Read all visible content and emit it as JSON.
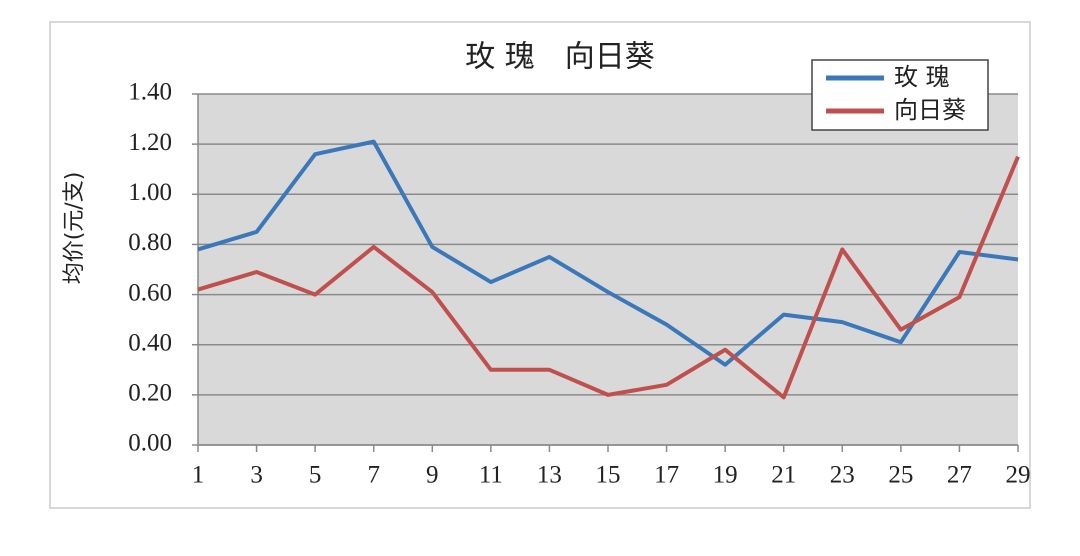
{
  "chart_data": {
    "type": "line",
    "title": "玫 瑰　向日葵",
    "y_label": "均价(元/支)",
    "x": [
      1,
      3,
      5,
      7,
      9,
      11,
      13,
      15,
      17,
      19,
      21,
      23,
      25,
      27,
      29
    ],
    "series": [
      {
        "name": "玫 瑰",
        "color": "#3b78b9",
        "values": [
          0.78,
          0.85,
          1.16,
          1.21,
          0.79,
          0.65,
          0.75,
          0.61,
          0.48,
          0.32,
          0.52,
          0.49,
          0.41,
          0.77,
          0.74
        ]
      },
      {
        "name": "向日葵",
        "color": "#c0504d",
        "values": [
          0.62,
          0.69,
          0.6,
          0.79,
          0.61,
          0.3,
          0.3,
          0.2,
          0.24,
          0.38,
          0.19,
          0.78,
          0.46,
          0.59,
          1.15
        ]
      }
    ],
    "xlim": [
      1,
      29
    ],
    "xticks": [
      1,
      3,
      5,
      7,
      9,
      11,
      13,
      15,
      17,
      19,
      21,
      23,
      25,
      27,
      29
    ],
    "ylim": [
      0,
      1.4
    ],
    "yticks": [
      {
        "value": 0,
        "label": "0.00"
      },
      {
        "value": 0.2,
        "label": "0.20"
      },
      {
        "value": 0.4,
        "label": "0.40"
      },
      {
        "value": 0.6,
        "label": "0.60"
      },
      {
        "value": 0.8,
        "label": "0.80"
      },
      {
        "value": 1.0,
        "label": "1.00"
      },
      {
        "value": 1.2,
        "label": "1.20"
      },
      {
        "value": 1.4,
        "label": "1.40"
      }
    ],
    "grid": true,
    "legend": "top-right"
  }
}
